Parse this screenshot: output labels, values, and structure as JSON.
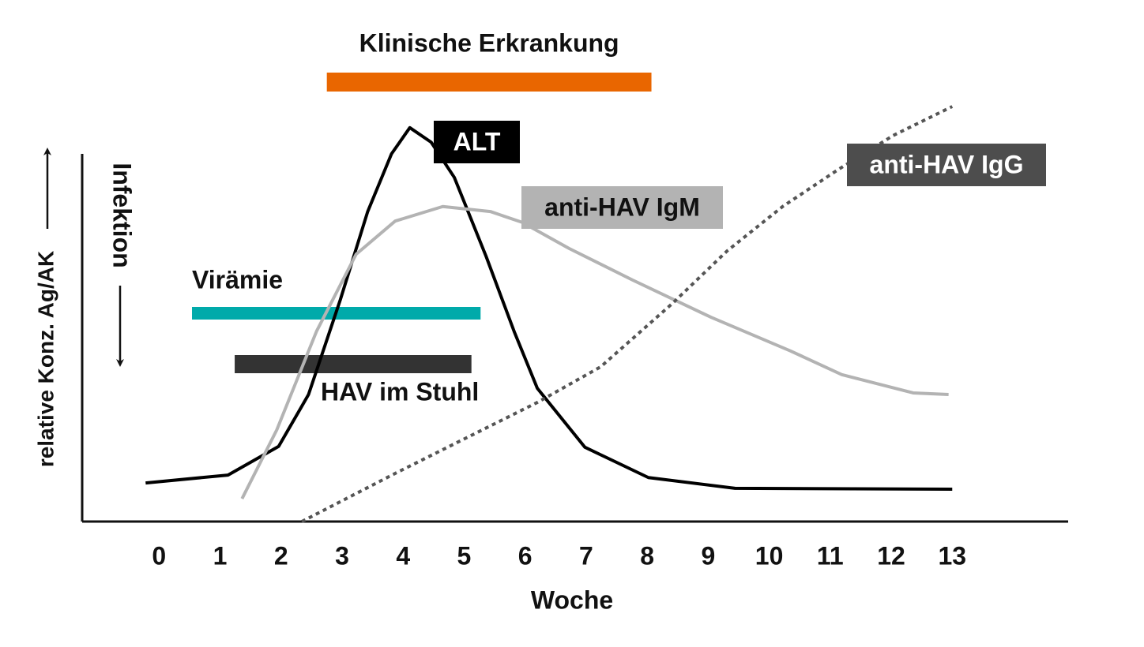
{
  "chart_data": {
    "type": "line",
    "xlabel": "Woche",
    "ylabel": "relative Konz. Ag/AK",
    "annotation": "Infektion",
    "xlim": [
      -1.26,
      14.9
    ],
    "xticks": [
      0,
      1,
      2,
      3,
      4,
      5,
      6,
      7,
      8,
      9,
      10,
      11,
      12,
      13
    ],
    "ylim": [
      0,
      100
    ],
    "series": [
      {
        "name": "ALT",
        "color": "#000000",
        "style": "solid",
        "x": [
          -0.22,
          1.13,
          1.96,
          2.45,
          2.97,
          3.42,
          3.81,
          4.11,
          4.46,
          4.84,
          5.36,
          5.82,
          6.2,
          6.98,
          8.02,
          9.44,
          13.0
        ],
        "values": [
          9.3,
          11.2,
          18.1,
          30.6,
          53.4,
          74.7,
          88.6,
          94.9,
          91.4,
          82.9,
          63.9,
          45.8,
          32.1,
          17.9,
          10.6,
          8.0,
          7.8
        ]
      },
      {
        "name": "anti-HAV IgM",
        "color": "#b3b3b3",
        "style": "solid",
        "x": [
          1.36,
          1.93,
          2.58,
          3.23,
          3.87,
          4.65,
          5.43,
          5.95,
          6.72,
          7.76,
          9.05,
          10.35,
          11.19,
          12.36,
          12.94
        ],
        "values": [
          5.5,
          22.1,
          45.8,
          64.4,
          72.4,
          75.9,
          74.7,
          72.1,
          65.8,
          58.2,
          49.2,
          41.1,
          35.4,
          31.0,
          30.6
        ]
      },
      {
        "name": "anti-HAV IgG",
        "color": "#555555",
        "style": "dotted",
        "x": [
          2.34,
          3.87,
          6.2,
          7.24,
          8.41,
          9.31,
          10.22,
          11.13,
          12.03,
          13.0
        ],
        "values": [
          0,
          11.6,
          28.7,
          37.3,
          52.5,
          65.2,
          75.9,
          84.8,
          93.0,
          100
        ]
      }
    ],
    "ranges": [
      {
        "label": "Klinische Erkrankung",
        "start": 2.75,
        "end": 8.07,
        "color": "#e96600"
      },
      {
        "label": "Virämie",
        "start": 0.54,
        "end": 5.27,
        "color": "#00aaaa"
      },
      {
        "label": "HAV im Stuhl",
        "start": 1.24,
        "end": 5.12,
        "color": "#333333"
      }
    ]
  }
}
